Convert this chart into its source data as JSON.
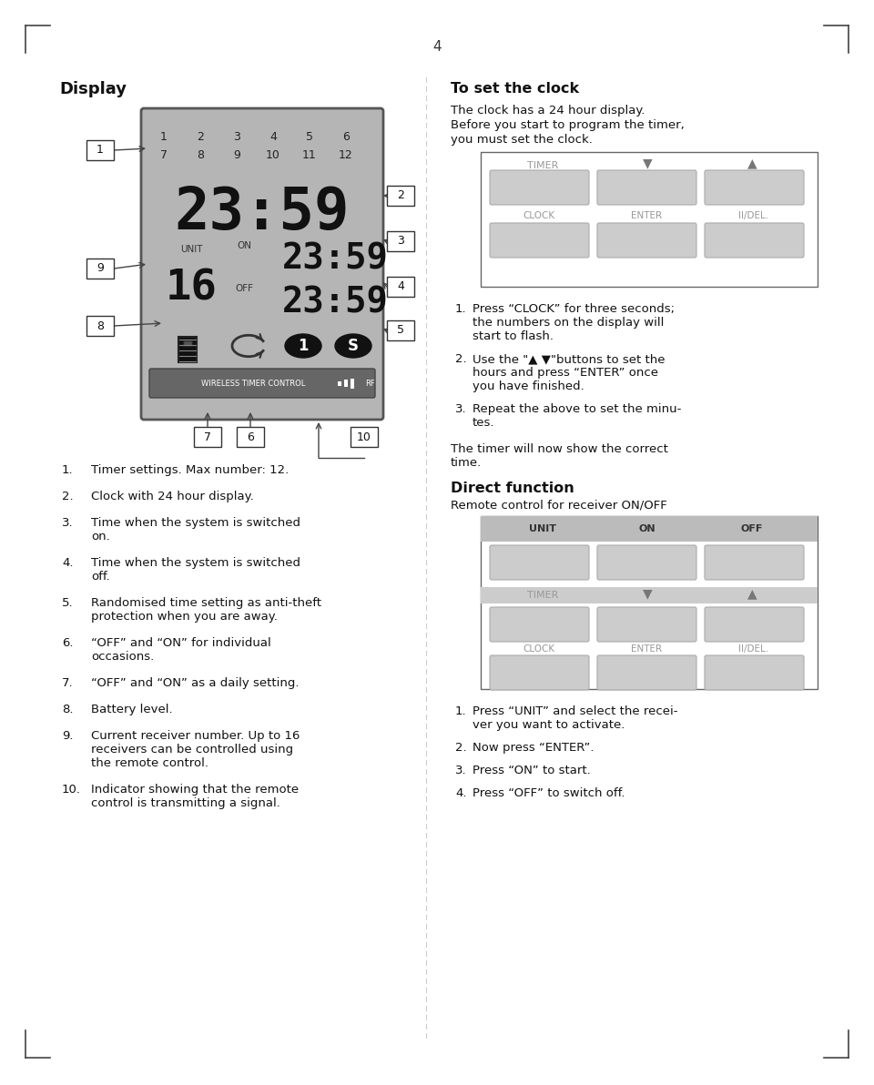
{
  "page_number": "4",
  "bg_color": "#ffffff",
  "display_title": "Display",
  "clock_section_title": "To set the clock",
  "clock_text_lines": [
    "The clock has a 24 hour display.",
    "Before you start to program the timer,",
    "you must set the clock."
  ],
  "clock_steps": [
    [
      "Press “CLOCK” for three seconds;",
      "the numbers on the display will",
      "start to flash."
    ],
    [
      "Use the \"▲ ▼\"buttons to set the",
      "hours and press “ENTER” once",
      "you have finished."
    ],
    [
      "Repeat the above to set the minu-",
      "tes."
    ]
  ],
  "clock_footer": [
    "The timer will now show the correct",
    "time."
  ],
  "direct_title": "Direct function",
  "direct_subtitle": "Remote control for receiver ON/OFF",
  "direct_steps": [
    [
      "Press “UNIT” and select the recei-",
      "ver you want to activate."
    ],
    [
      "Now press “ENTER”."
    ],
    [
      "Press “ON” to start."
    ],
    [
      "Press “OFF” to switch off."
    ]
  ],
  "left_list": [
    [
      "Timer settings. Max number: 12."
    ],
    [
      "Clock with 24 hour display."
    ],
    [
      "Time when the system is switched",
      "on."
    ],
    [
      "Time when the system is switched",
      "off."
    ],
    [
      "Randomised time setting as anti-theft",
      "protection when you are away."
    ],
    [
      "“OFF” and “ON” for individual",
      "occasions."
    ],
    [
      "“OFF” and “ON” as a daily setting."
    ],
    [
      "Battery level."
    ],
    [
      "Current receiver number. Up to 16",
      "receivers can be controlled using",
      "the remote control."
    ],
    [
      "Indicator showing that the remote",
      "control is transmitting a signal."
    ]
  ]
}
